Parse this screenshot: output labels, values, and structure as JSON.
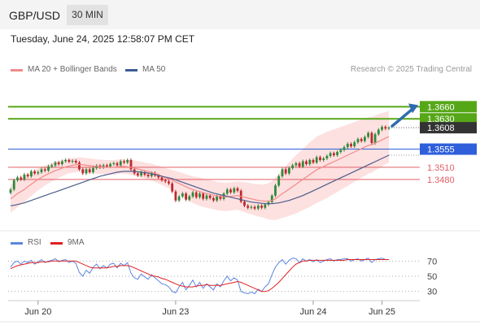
{
  "header": {
    "symbol": "GBP/USD",
    "timeframe": "30 MIN",
    "timestamp": "Tuesday, June 24, 2025 12:58:07 PM CET"
  },
  "legend": {
    "bollinger_label": "MA 20 + Bollinger Bands",
    "ma50_label": "MA 50",
    "credit": "Research © 2025 Trading Central"
  },
  "rsi_legend": {
    "rsi_label": "RSI",
    "ma_label": "9MA"
  },
  "colors": {
    "resistance": "#56a718",
    "pivot": "#2f5fdb",
    "support": "#e05f66",
    "current": "#333333",
    "bollinger_line": "#f18a8a",
    "bollinger_band": "#fde0e0",
    "ma50": "#4b5d8a",
    "arrow": "#2e6bb0",
    "rsi": "#5b86e0",
    "rsi_ma": "#e02020",
    "candle_up": "#2f8a3a",
    "candle_down": "#c0272d"
  },
  "chart_data": [
    {
      "type": "candlestick",
      "ylim": [
        1.3355,
        1.3725
      ],
      "x_ticks": [
        {
          "label": "Jun 20",
          "index": 8
        },
        {
          "label": "Jun 23",
          "index": 48
        },
        {
          "label": "Jun 24",
          "index": 88
        },
        {
          "label": "Jun 25",
          "index": 108
        }
      ],
      "price_levels": [
        {
          "value": 1.366,
          "label": "1.3660",
          "kind": "resistance"
        },
        {
          "value": 1.363,
          "label": "1.3630",
          "kind": "resistance"
        },
        {
          "value": 1.3608,
          "label": "1.3608",
          "kind": "current"
        },
        {
          "value": 1.3555,
          "label": "1.3555",
          "kind": "pivot"
        },
        {
          "value": 1.351,
          "label": "1.3510",
          "kind": "support"
        },
        {
          "value": 1.348,
          "label": "1.3480",
          "kind": "support"
        }
      ],
      "close": [
        1.3455,
        1.3478,
        1.3485,
        1.348,
        1.3492,
        1.3488,
        1.35,
        1.3495,
        1.3498,
        1.3505,
        1.3502,
        1.3512,
        1.3515,
        1.3522,
        1.3518,
        1.3525,
        1.3528,
        1.3524,
        1.3526,
        1.3522,
        1.3505,
        1.3495,
        1.3505,
        1.3498,
        1.3508,
        1.3514,
        1.351,
        1.3515,
        1.3512,
        1.3518,
        1.352,
        1.3515,
        1.3525,
        1.3522,
        1.3528,
        1.3505,
        1.3495,
        1.349,
        1.3498,
        1.3492,
        1.3488,
        1.3496,
        1.349,
        1.3485,
        1.3478,
        1.3475,
        1.347,
        1.345,
        1.3428,
        1.3438,
        1.3445,
        1.343,
        1.3438,
        1.3448,
        1.3436,
        1.3445,
        1.3432,
        1.344,
        1.3434,
        1.3428,
        1.3438,
        1.3432,
        1.3445,
        1.3455,
        1.3448,
        1.3458,
        1.3452,
        1.3425,
        1.3415,
        1.341,
        1.3412,
        1.3408,
        1.3415,
        1.341,
        1.3418,
        1.3424,
        1.344,
        1.3465,
        1.3488,
        1.3505,
        1.3495,
        1.3508,
        1.3515,
        1.352,
        1.3512,
        1.3525,
        1.3518,
        1.3528,
        1.3522,
        1.3535,
        1.3528,
        1.3532,
        1.3538,
        1.3545,
        1.354,
        1.3548,
        1.3553,
        1.356,
        1.3568,
        1.3562,
        1.3572,
        1.358,
        1.3575,
        1.3585,
        1.3595,
        1.357,
        1.3592,
        1.3603,
        1.361,
        1.3606,
        1.3608
      ],
      "bollinger_mid": [
        1.3432,
        1.3438,
        1.3445,
        1.345,
        1.3455,
        1.3462,
        1.3468,
        1.3474,
        1.348,
        1.3485,
        1.349,
        1.3494,
        1.3498,
        1.3502,
        1.3505,
        1.3508,
        1.3511,
        1.3513,
        1.3515,
        1.3516,
        1.3517,
        1.3516,
        1.3515,
        1.3514,
        1.3513,
        1.3512,
        1.3511,
        1.3511,
        1.351,
        1.351,
        1.351,
        1.3511,
        1.3512,
        1.3512,
        1.3511,
        1.351,
        1.3508,
        1.3506,
        1.3504,
        1.3502,
        1.35,
        1.3498,
        1.3495,
        1.3492,
        1.3488,
        1.3485,
        1.3482,
        1.3478,
        1.3474,
        1.347,
        1.3466,
        1.3462,
        1.3458,
        1.3455,
        1.3452,
        1.345,
        1.3447,
        1.3445,
        1.3443,
        1.3441,
        1.3439,
        1.3438,
        1.3437,
        1.3437,
        1.3438,
        1.3439,
        1.344,
        1.3438,
        1.3436,
        1.3434,
        1.3432,
        1.343,
        1.3428,
        1.3427,
        1.3426,
        1.3426,
        1.3428,
        1.3432,
        1.3438,
        1.3445,
        1.345,
        1.3456,
        1.3462,
        1.3468,
        1.3474,
        1.348,
        1.3486,
        1.3492,
        1.3498,
        1.3504,
        1.3508,
        1.3512,
        1.3516,
        1.352,
        1.3524,
        1.3528,
        1.3532,
        1.3536,
        1.354,
        1.3544,
        1.3548,
        1.3552,
        1.3556,
        1.356,
        1.3564,
        1.3566,
        1.357,
        1.3574,
        1.3578,
        1.3582,
        1.3586
      ],
      "bollinger_half_width": [
        0.0035,
        0.0034,
        0.0033,
        0.0032,
        0.0031,
        0.003,
        0.0029,
        0.0028,
        0.0027,
        0.0026,
        0.0025,
        0.0024,
        0.0023,
        0.0022,
        0.0021,
        0.002,
        0.0019,
        0.0018,
        0.0018,
        0.0018,
        0.0018,
        0.0018,
        0.0018,
        0.0018,
        0.0018,
        0.0018,
        0.0018,
        0.0018,
        0.0018,
        0.0018,
        0.0018,
        0.0018,
        0.0018,
        0.0018,
        0.0018,
        0.0019,
        0.0019,
        0.0019,
        0.002,
        0.002,
        0.002,
        0.0021,
        0.0021,
        0.0022,
        0.0022,
        0.0023,
        0.0024,
        0.0025,
        0.0027,
        0.0028,
        0.003,
        0.0031,
        0.0032,
        0.0033,
        0.0034,
        0.0035,
        0.0035,
        0.0035,
        0.0035,
        0.0035,
        0.0035,
        0.0035,
        0.0035,
        0.0035,
        0.0035,
        0.0035,
        0.0035,
        0.0036,
        0.0037,
        0.0038,
        0.0038,
        0.0039,
        0.004,
        0.004,
        0.0042,
        0.0045,
        0.0048,
        0.0052,
        0.0056,
        0.006,
        0.0063,
        0.0066,
        0.0069,
        0.0072,
        0.0074,
        0.0076,
        0.0078,
        0.008,
        0.0081,
        0.0082,
        0.0082,
        0.0082,
        0.0082,
        0.0081,
        0.008,
        0.0079,
        0.0078,
        0.0077,
        0.0076,
        0.0075,
        0.0074,
        0.0073,
        0.0072,
        0.0071,
        0.007,
        0.0069,
        0.0068,
        0.0067,
        0.0066,
        0.0065,
        0.0064
      ],
      "ma50": [
        1.3415,
        1.3416,
        1.3418,
        1.342,
        1.3422,
        1.3425,
        1.3428,
        1.3431,
        1.3434,
        1.3437,
        1.344,
        1.3443,
        1.3446,
        1.3449,
        1.3452,
        1.3455,
        1.3458,
        1.3461,
        1.3464,
        1.3467,
        1.347,
        1.3473,
        1.3476,
        1.3479,
        1.3482,
        1.3485,
        1.3488,
        1.349,
        1.3492,
        1.3494,
        1.3496,
        1.3498,
        1.3499,
        1.35,
        1.35,
        1.35,
        1.35,
        1.3499,
        1.3498,
        1.3497,
        1.3496,
        1.3494,
        1.3492,
        1.349,
        1.3488,
        1.3486,
        1.3484,
        1.3482,
        1.3479,
        1.3476,
        1.3473,
        1.347,
        1.3467,
        1.3464,
        1.3461,
        1.3458,
        1.3455,
        1.3452,
        1.3449,
        1.3446,
        1.3444,
        1.3442,
        1.344,
        1.3438,
        1.3436,
        1.3434,
        1.3432,
        1.343,
        1.3428,
        1.3426,
        1.3424,
        1.3423,
        1.3422,
        1.3421,
        1.342,
        1.342,
        1.342,
        1.3421,
        1.3422,
        1.3424,
        1.3426,
        1.3428,
        1.3431,
        1.3434,
        1.3437,
        1.344,
        1.3444,
        1.3448,
        1.3452,
        1.3456,
        1.346,
        1.3464,
        1.3468,
        1.3472,
        1.3476,
        1.348,
        1.3484,
        1.3488,
        1.3492,
        1.3496,
        1.35,
        1.3504,
        1.3508,
        1.3512,
        1.3516,
        1.352,
        1.3524,
        1.3528,
        1.3532,
        1.3536,
        1.354
      ],
      "forecast": {
        "from": 1.3612,
        "to": 1.366
      }
    },
    {
      "type": "line",
      "title": "RSI",
      "ylim": [
        20,
        80
      ],
      "y_ticks": [
        70,
        50,
        30
      ],
      "series": [
        {
          "name": "RSI",
          "values": [
            62,
            68,
            70,
            66,
            70,
            68,
            71,
            66,
            69,
            72,
            68,
            70,
            71,
            73,
            69,
            71,
            72,
            68,
            70,
            67,
            55,
            50,
            58,
            54,
            62,
            66,
            60,
            64,
            61,
            66,
            67,
            61,
            67,
            64,
            68,
            54,
            48,
            46,
            53,
            49,
            46,
            52,
            48,
            44,
            40,
            39,
            36,
            30,
            28,
            36,
            42,
            32,
            38,
            45,
            36,
            42,
            34,
            40,
            36,
            32,
            40,
            36,
            44,
            50,
            44,
            48,
            45,
            30,
            28,
            27,
            29,
            27,
            33,
            30,
            36,
            40,
            52,
            62,
            68,
            72,
            66,
            71,
            74,
            73,
            68,
            73,
            70,
            72,
            69,
            72,
            68,
            70,
            72,
            73,
            70,
            72,
            72,
            73,
            73,
            70,
            72,
            73,
            70,
            72,
            74,
            68,
            72,
            73,
            74,
            72,
            72
          ]
        },
        {
          "name": "9MA",
          "values": [
            60,
            62,
            64,
            65,
            66,
            67,
            68,
            68,
            68,
            69,
            69,
            69,
            70,
            70,
            70,
            70,
            70,
            70,
            70,
            70,
            68,
            66,
            64,
            62,
            61,
            61,
            61,
            61,
            61,
            62,
            63,
            63,
            64,
            64,
            64,
            63,
            61,
            59,
            57,
            55,
            53,
            51,
            50,
            49,
            47,
            46,
            44,
            42,
            40,
            38,
            37,
            36,
            36,
            36,
            37,
            38,
            38,
            39,
            38,
            38,
            38,
            38,
            39,
            40,
            41,
            42,
            43,
            42,
            40,
            38,
            36,
            34,
            32,
            30,
            30,
            31,
            34,
            38,
            42,
            47,
            52,
            57,
            62,
            66,
            68,
            70,
            70,
            71,
            71,
            71,
            71,
            71,
            71,
            71,
            71,
            71,
            71,
            71,
            72,
            72,
            72,
            72,
            72,
            72,
            72,
            72,
            72,
            72,
            72,
            72,
            72
          ]
        }
      ]
    }
  ]
}
